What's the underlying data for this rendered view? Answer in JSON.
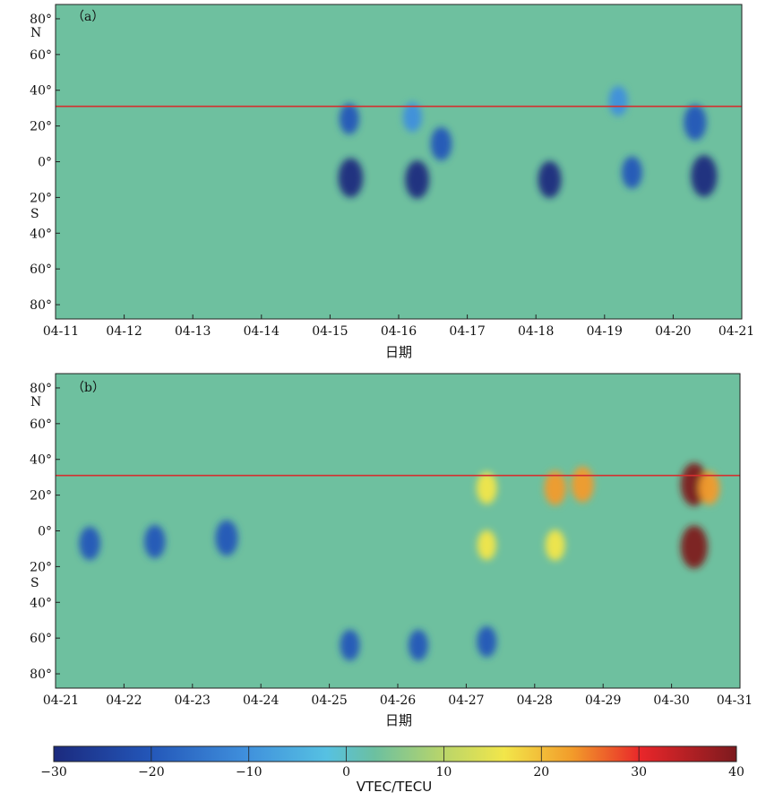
{
  "chart_data": [
    {
      "type": "heatmap",
      "panel_label": "（a）",
      "xlabel": "日期",
      "x_ticks": [
        "04-11",
        "04-12",
        "04-13",
        "04-14",
        "04-15",
        "04-16",
        "04-17",
        "04-18",
        "04-19",
        "04-20",
        "04-21"
      ],
      "y_ticks": [
        "80°",
        "60°",
        "40°",
        "20°",
        "0°",
        "20°",
        "40°",
        "60°",
        "80°"
      ],
      "y_range": [
        -88,
        88
      ],
      "north_label": "N",
      "south_label": "S",
      "reference_latitude": 31,
      "reference_line_color": "#d42f2f",
      "anomalies": [
        {
          "day": 4.3,
          "lat": -9,
          "value": -24
        },
        {
          "day": 5.27,
          "lat": -10,
          "value": -22
        },
        {
          "day": 5.62,
          "lat": 10,
          "value": -14
        },
        {
          "day": 7.2,
          "lat": -10,
          "value": -20
        },
        {
          "day": 8.4,
          "lat": -6,
          "value": -12
        },
        {
          "day": 9.45,
          "lat": -8,
          "value": -28
        },
        {
          "day": 9.32,
          "lat": 22,
          "value": -18
        },
        {
          "day": 4.28,
          "lat": 24,
          "value": -10
        },
        {
          "day": 5.2,
          "lat": 25,
          "value": -8
        },
        {
          "day": 8.2,
          "lat": 34,
          "value": -8
        }
      ]
    },
    {
      "type": "heatmap",
      "panel_label": "（b）",
      "xlabel": "日期",
      "x_ticks": [
        "04-21",
        "04-22",
        "04-23",
        "04-24",
        "04-25",
        "04-26",
        "04-27",
        "04-28",
        "04-29",
        "04-30",
        "04-31"
      ],
      "y_ticks": [
        "80°",
        "60°",
        "40°",
        "20°",
        "0°",
        "20°",
        "40°",
        "60°",
        "80°"
      ],
      "y_range": [
        -88,
        88
      ],
      "north_label": "N",
      "south_label": "S",
      "reference_latitude": 31,
      "reference_line_color": "#d42f2f",
      "anomalies": [
        {
          "day": 0.5,
          "lat": -7,
          "value": -14
        },
        {
          "day": 1.45,
          "lat": -6,
          "value": -14
        },
        {
          "day": 2.5,
          "lat": -4,
          "value": -18
        },
        {
          "day": 4.3,
          "lat": -64,
          "value": -10
        },
        {
          "day": 5.3,
          "lat": -64,
          "value": -10
        },
        {
          "day": 6.3,
          "lat": -62,
          "value": -10
        },
        {
          "day": 6.3,
          "lat": 24,
          "value": 12
        },
        {
          "day": 6.3,
          "lat": -8,
          "value": 8
        },
        {
          "day": 7.3,
          "lat": 24,
          "value": 16
        },
        {
          "day": 7.3,
          "lat": -8,
          "value": 10
        },
        {
          "day": 7.7,
          "lat": 26,
          "value": 18
        },
        {
          "day": 9.33,
          "lat": 26,
          "value": 38
        },
        {
          "day": 9.33,
          "lat": -9,
          "value": 36
        },
        {
          "day": 9.55,
          "lat": 24,
          "value": 14
        }
      ]
    }
  ],
  "colorbar": {
    "min": -30,
    "max": 40,
    "ticks": [
      "−30",
      "−20",
      "−10",
      "0",
      "10",
      "20",
      "30",
      "40"
    ],
    "label": "VTEC/TECU"
  }
}
